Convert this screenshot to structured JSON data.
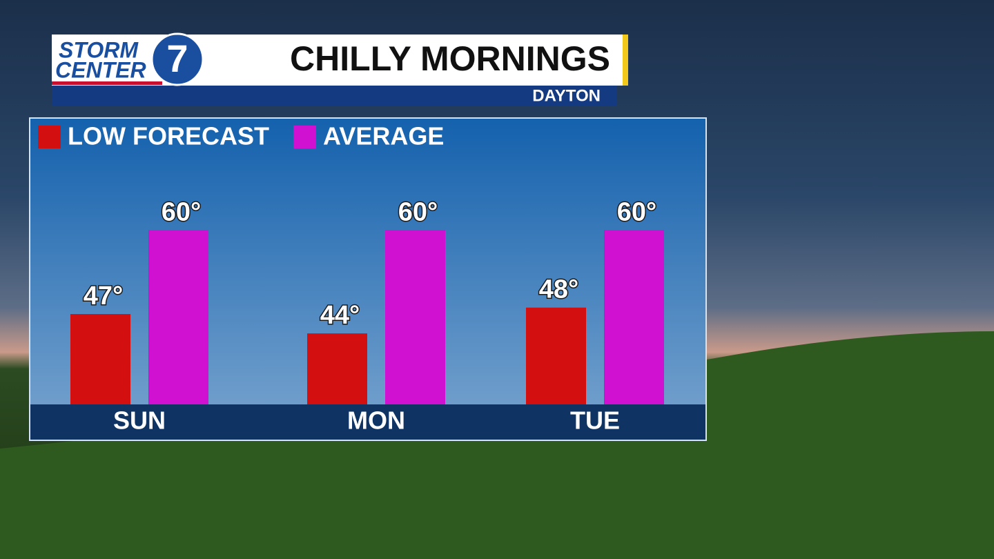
{
  "logo": {
    "line1": "STORM",
    "line2": "CENTER",
    "number": "7"
  },
  "chart_data": {
    "type": "bar",
    "title": "CHILLY MORNINGS",
    "subtitle": "DAYTON",
    "categories": [
      "SUN",
      "MON",
      "TUE"
    ],
    "series": [
      {
        "name": "LOW FORECAST",
        "color": "#d40f0f",
        "values": [
          47,
          44,
          48
        ],
        "value_labels": [
          "47°",
          "44°",
          "48°"
        ]
      },
      {
        "name": "AVERAGE",
        "color": "#d011d2",
        "values": [
          60,
          60,
          60
        ],
        "value_labels": [
          "60°",
          "60°",
          "60°"
        ]
      }
    ],
    "ylim": [
      33,
      67
    ]
  }
}
